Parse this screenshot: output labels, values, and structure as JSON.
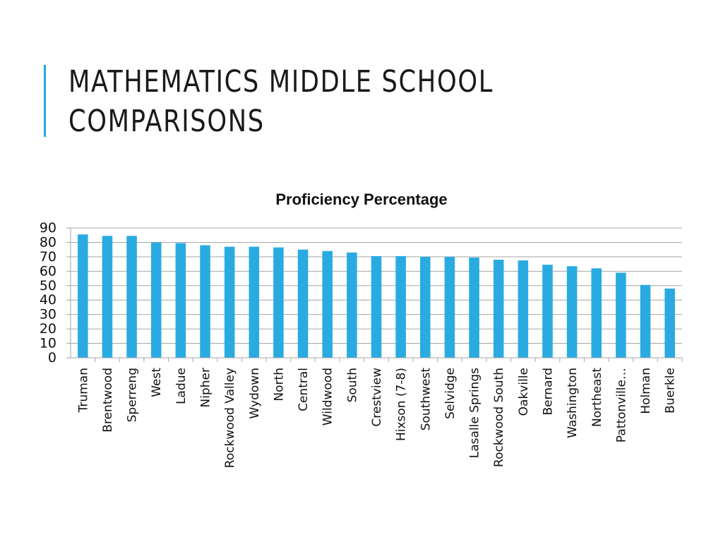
{
  "slide": {
    "title_line1": "Mathematics Middle School",
    "title_line2": "Comparisons"
  },
  "colors": {
    "accent": "#29a6d9",
    "bar": "#29abe2",
    "grid": "#a6a6a6",
    "text": "#1a1a1a"
  },
  "chart_data": {
    "type": "bar",
    "title": "Proficiency Percentage",
    "xlabel": "",
    "ylabel": "",
    "ylim": [
      0,
      90
    ],
    "yticks": [
      0,
      10,
      20,
      30,
      40,
      50,
      60,
      70,
      80,
      90
    ],
    "grid": true,
    "legend": "none",
    "categories": [
      "Truman",
      "Brentwood",
      "Sperreng",
      "West",
      "Ladue",
      "Nipher",
      "Rockwood Valley",
      "Wydown",
      "North",
      "Central",
      "Wildwood",
      "South",
      "Crestview",
      "Hixson (7-8)",
      "Southwest",
      "Selvidge",
      "Lasalle Springs",
      "Rockwood South",
      "Oakville",
      "Bernard",
      "Washington",
      "Northeast",
      "Pattonville…",
      "Holman",
      "Buerkle"
    ],
    "values": [
      85.5,
      84.5,
      84.5,
      80,
      79.5,
      78,
      77,
      77,
      76.5,
      75,
      74,
      73,
      70.5,
      70.5,
      70,
      70,
      69.5,
      68,
      67.5,
      64.5,
      63.5,
      62,
      59,
      50.5,
      48
    ]
  }
}
